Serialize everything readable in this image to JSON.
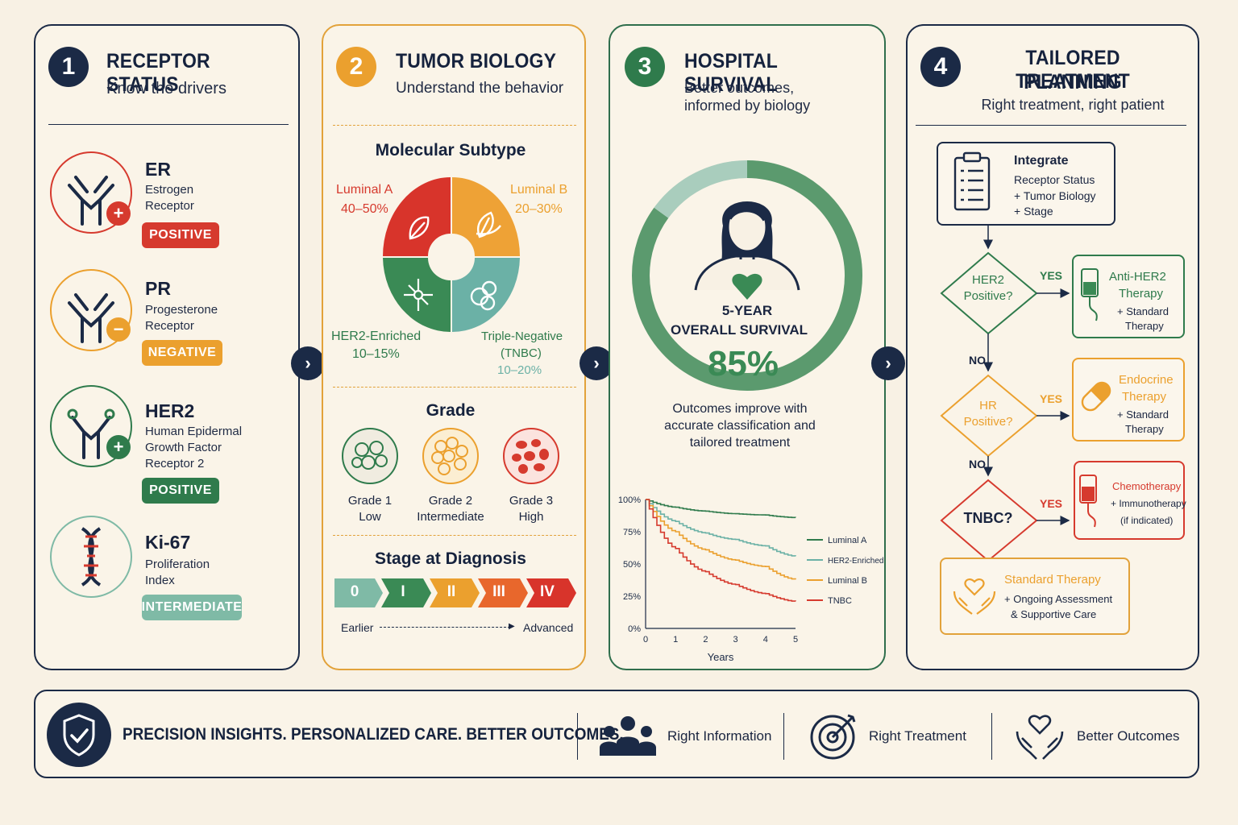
{
  "panel1": {
    "number": "1",
    "title": "RECEPTOR STATUS",
    "subtitle": "Know the drivers",
    "receptors": [
      {
        "name": "ER",
        "desc1": "Estrogen",
        "desc2": "Receptor",
        "desc3": "",
        "status": "POSITIVE",
        "sign": "+",
        "color": "#d63a2e",
        "icon": "antibody-icon"
      },
      {
        "name": "PR",
        "desc1": "Progesterone",
        "desc2": "Receptor",
        "desc3": "",
        "status": "NEGATIVE",
        "sign": "−",
        "color": "#eba02e",
        "icon": "antibody-icon"
      },
      {
        "name": "HER2",
        "desc1": "Human Epidermal",
        "desc2": "Growth Factor",
        "desc3": "Receptor 2",
        "status": "POSITIVE",
        "sign": "+",
        "color": "#2f7b4c",
        "icon": "receptor-icon"
      },
      {
        "name": "Ki-67",
        "desc1": "Proliferation",
        "desc2": "Index",
        "desc3": "",
        "status": "INTERMEDIATE",
        "sign": "",
        "color": "#7fbaa6",
        "icon": "dna-icon"
      }
    ]
  },
  "panel2": {
    "number": "2",
    "title": "TUMOR BIOLOGY",
    "subtitle": "Understand the behavior",
    "molecular_title": "Molecular Subtype",
    "subtypes": [
      {
        "name": "Luminal A",
        "pct": "40–50%",
        "color": "#d8342b"
      },
      {
        "name": "Luminal B",
        "pct": "20–30%",
        "color": "#eea236"
      },
      {
        "name": "HER2-Enriched",
        "pct": "10–15%",
        "color": "#3a8a55"
      },
      {
        "name": "Triple-Negative",
        "name2": "(TNBC)",
        "pct": "10–20%",
        "color": "#6bb1a6"
      }
    ],
    "grade_title": "Grade",
    "grades": [
      {
        "name": "Grade 1",
        "level": "Low",
        "color": "#2f7b4c"
      },
      {
        "name": "Grade 2",
        "level": "Intermediate",
        "color": "#eba02e"
      },
      {
        "name": "Grade 3",
        "level": "High",
        "color": "#d63a2e"
      }
    ],
    "stage_title": "Stage at Diagnosis",
    "stages": [
      "0",
      "I",
      "II",
      "III",
      "IV"
    ],
    "stage_colors": [
      "#7fbaa6",
      "#3a8a55",
      "#eba02e",
      "#e8672c",
      "#d8342b"
    ],
    "earlier": "Earlier",
    "advanced": "Advanced"
  },
  "panel3": {
    "number": "3",
    "title": "HOSPITAL SURVIVAL",
    "subtitle1": "Better outcomes,",
    "subtitle2": "informed by biology",
    "ring_label1": "5-YEAR",
    "ring_label2": "OVERALL SURVIVAL",
    "survival_pct": "85%",
    "survival_value": 85,
    "note1": "Outcomes improve with",
    "note2": "accurate classification and",
    "note3": "tailored treatment",
    "xlabel": "Years"
  },
  "chart_data": {
    "type": "line",
    "x": [
      0,
      1,
      2,
      3,
      4,
      5
    ],
    "xticks": [
      "0",
      "1",
      "2",
      "3",
      "4",
      "5"
    ],
    "yticks": [
      "0%",
      "25%",
      "50%",
      "75%",
      "100%"
    ],
    "ylim": [
      0,
      100
    ],
    "xlim": [
      0,
      5
    ],
    "xlabel": "Years",
    "ylabel": "",
    "legend": "right",
    "series": [
      {
        "name": "Luminal A",
        "color": "#2f7b4c",
        "values": [
          100,
          94,
          91,
          89,
          88,
          86
        ]
      },
      {
        "name": "HER2-Enriched",
        "color": "#6bb1a6",
        "values": [
          100,
          83,
          74,
          69,
          64,
          56
        ]
      },
      {
        "name": "Luminal B",
        "color": "#eba02e",
        "values": [
          100,
          75,
          61,
          53,
          48,
          38
        ]
      },
      {
        "name": "TNBC",
        "color": "#d63a2e",
        "values": [
          100,
          62,
          44,
          34,
          27,
          21
        ]
      }
    ]
  },
  "panel4": {
    "number": "4",
    "title1": "TAILORED TREATMENT",
    "title2": "PLANNING",
    "subtitle": "Right treatment, right patient",
    "integrate_title": "Integrate",
    "integrate_l1": "Receptor Status",
    "integrate_l2": "+ Tumor Biology",
    "integrate_l3": "+ Stage",
    "q1a": "HER2",
    "q1b": "Positive?",
    "q2a": "HR",
    "q2b": "Positive?",
    "q3": "TNBC?",
    "yes": "YES",
    "no": "NO",
    "t1a": "Anti-HER2",
    "t1b": "Therapy",
    "t1c": "+ Standard",
    "t1d": "Therapy",
    "t2a": "Endocrine",
    "t2b": "Therapy",
    "t2c": "+ Standard",
    "t2d": "Therapy",
    "t3a": "Chemotherapy",
    "t3b": "+ Immunotherapy",
    "t3c": "(if indicated)",
    "t4a": "Standard Therapy",
    "t4b": "+ Ongoing Assessment",
    "t4c": "& Supportive Care"
  },
  "footer": {
    "tagline": "PRECISION INSIGHTS. PERSONALIZED CARE. BETTER OUTCOMES.",
    "items": [
      "Right Information",
      "Right Treatment",
      "Better Outcomes"
    ]
  },
  "colors": {
    "navy": "#1b2a46",
    "orange": "#eba02e",
    "green": "#2f7b4c",
    "red": "#d63a2e",
    "teal": "#7fbaa6"
  }
}
